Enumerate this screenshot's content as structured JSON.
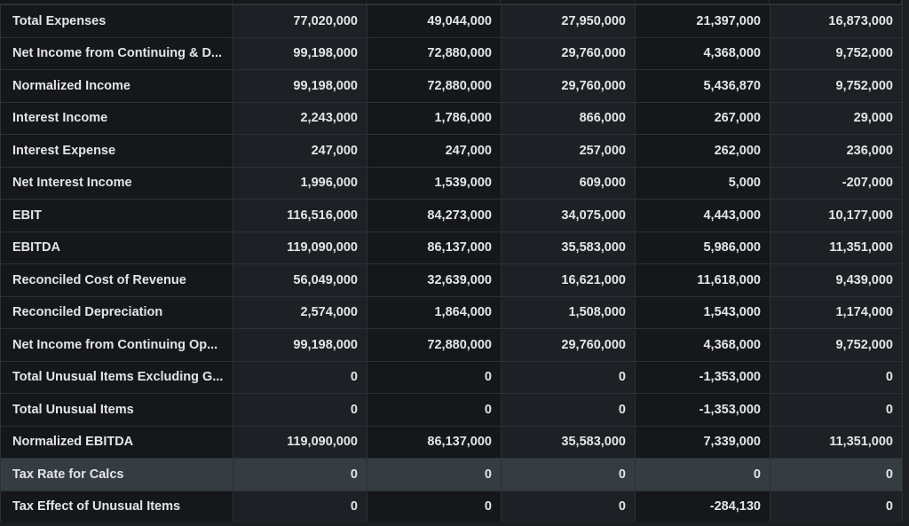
{
  "rows": [
    {
      "label": "Total Expenses",
      "values": [
        "77,020,000",
        "49,044,000",
        "27,950,000",
        "21,397,000",
        "16,873,000"
      ]
    },
    {
      "label": "Net Income from Continuing & D...",
      "values": [
        "99,198,000",
        "72,880,000",
        "29,760,000",
        "4,368,000",
        "9,752,000"
      ]
    },
    {
      "label": "Normalized Income",
      "values": [
        "99,198,000",
        "72,880,000",
        "29,760,000",
        "5,436,870",
        "9,752,000"
      ]
    },
    {
      "label": "Interest Income",
      "values": [
        "2,243,000",
        "1,786,000",
        "866,000",
        "267,000",
        "29,000"
      ]
    },
    {
      "label": "Interest Expense",
      "values": [
        "247,000",
        "247,000",
        "257,000",
        "262,000",
        "236,000"
      ]
    },
    {
      "label": "Net Interest Income",
      "values": [
        "1,996,000",
        "1,539,000",
        "609,000",
        "5,000",
        "-207,000"
      ]
    },
    {
      "label": "EBIT",
      "values": [
        "116,516,000",
        "84,273,000",
        "34,075,000",
        "4,443,000",
        "10,177,000"
      ]
    },
    {
      "label": "EBITDA",
      "values": [
        "119,090,000",
        "86,137,000",
        "35,583,000",
        "5,986,000",
        "11,351,000"
      ]
    },
    {
      "label": "Reconciled Cost of Revenue",
      "values": [
        "56,049,000",
        "32,639,000",
        "16,621,000",
        "11,618,000",
        "9,439,000"
      ]
    },
    {
      "label": "Reconciled Depreciation",
      "values": [
        "2,574,000",
        "1,864,000",
        "1,508,000",
        "1,543,000",
        "1,174,000"
      ]
    },
    {
      "label": "Net Income from Continuing Op...",
      "values": [
        "99,198,000",
        "72,880,000",
        "29,760,000",
        "4,368,000",
        "9,752,000"
      ]
    },
    {
      "label": "Total Unusual Items Excluding G...",
      "values": [
        "0",
        "0",
        "0",
        "-1,353,000",
        "0"
      ]
    },
    {
      "label": "Total Unusual Items",
      "values": [
        "0",
        "0",
        "0",
        "-1,353,000",
        "0"
      ]
    },
    {
      "label": "Normalized EBITDA",
      "values": [
        "119,090,000",
        "86,137,000",
        "35,583,000",
        "7,339,000",
        "11,351,000"
      ]
    },
    {
      "label": "Tax Rate for Calcs",
      "values": [
        "0",
        "0",
        "0",
        "0",
        "0"
      ],
      "highlighted": true
    },
    {
      "label": "Tax Effect of Unusual Items",
      "values": [
        "0",
        "0",
        "0",
        "-284,130",
        "0"
      ]
    }
  ]
}
